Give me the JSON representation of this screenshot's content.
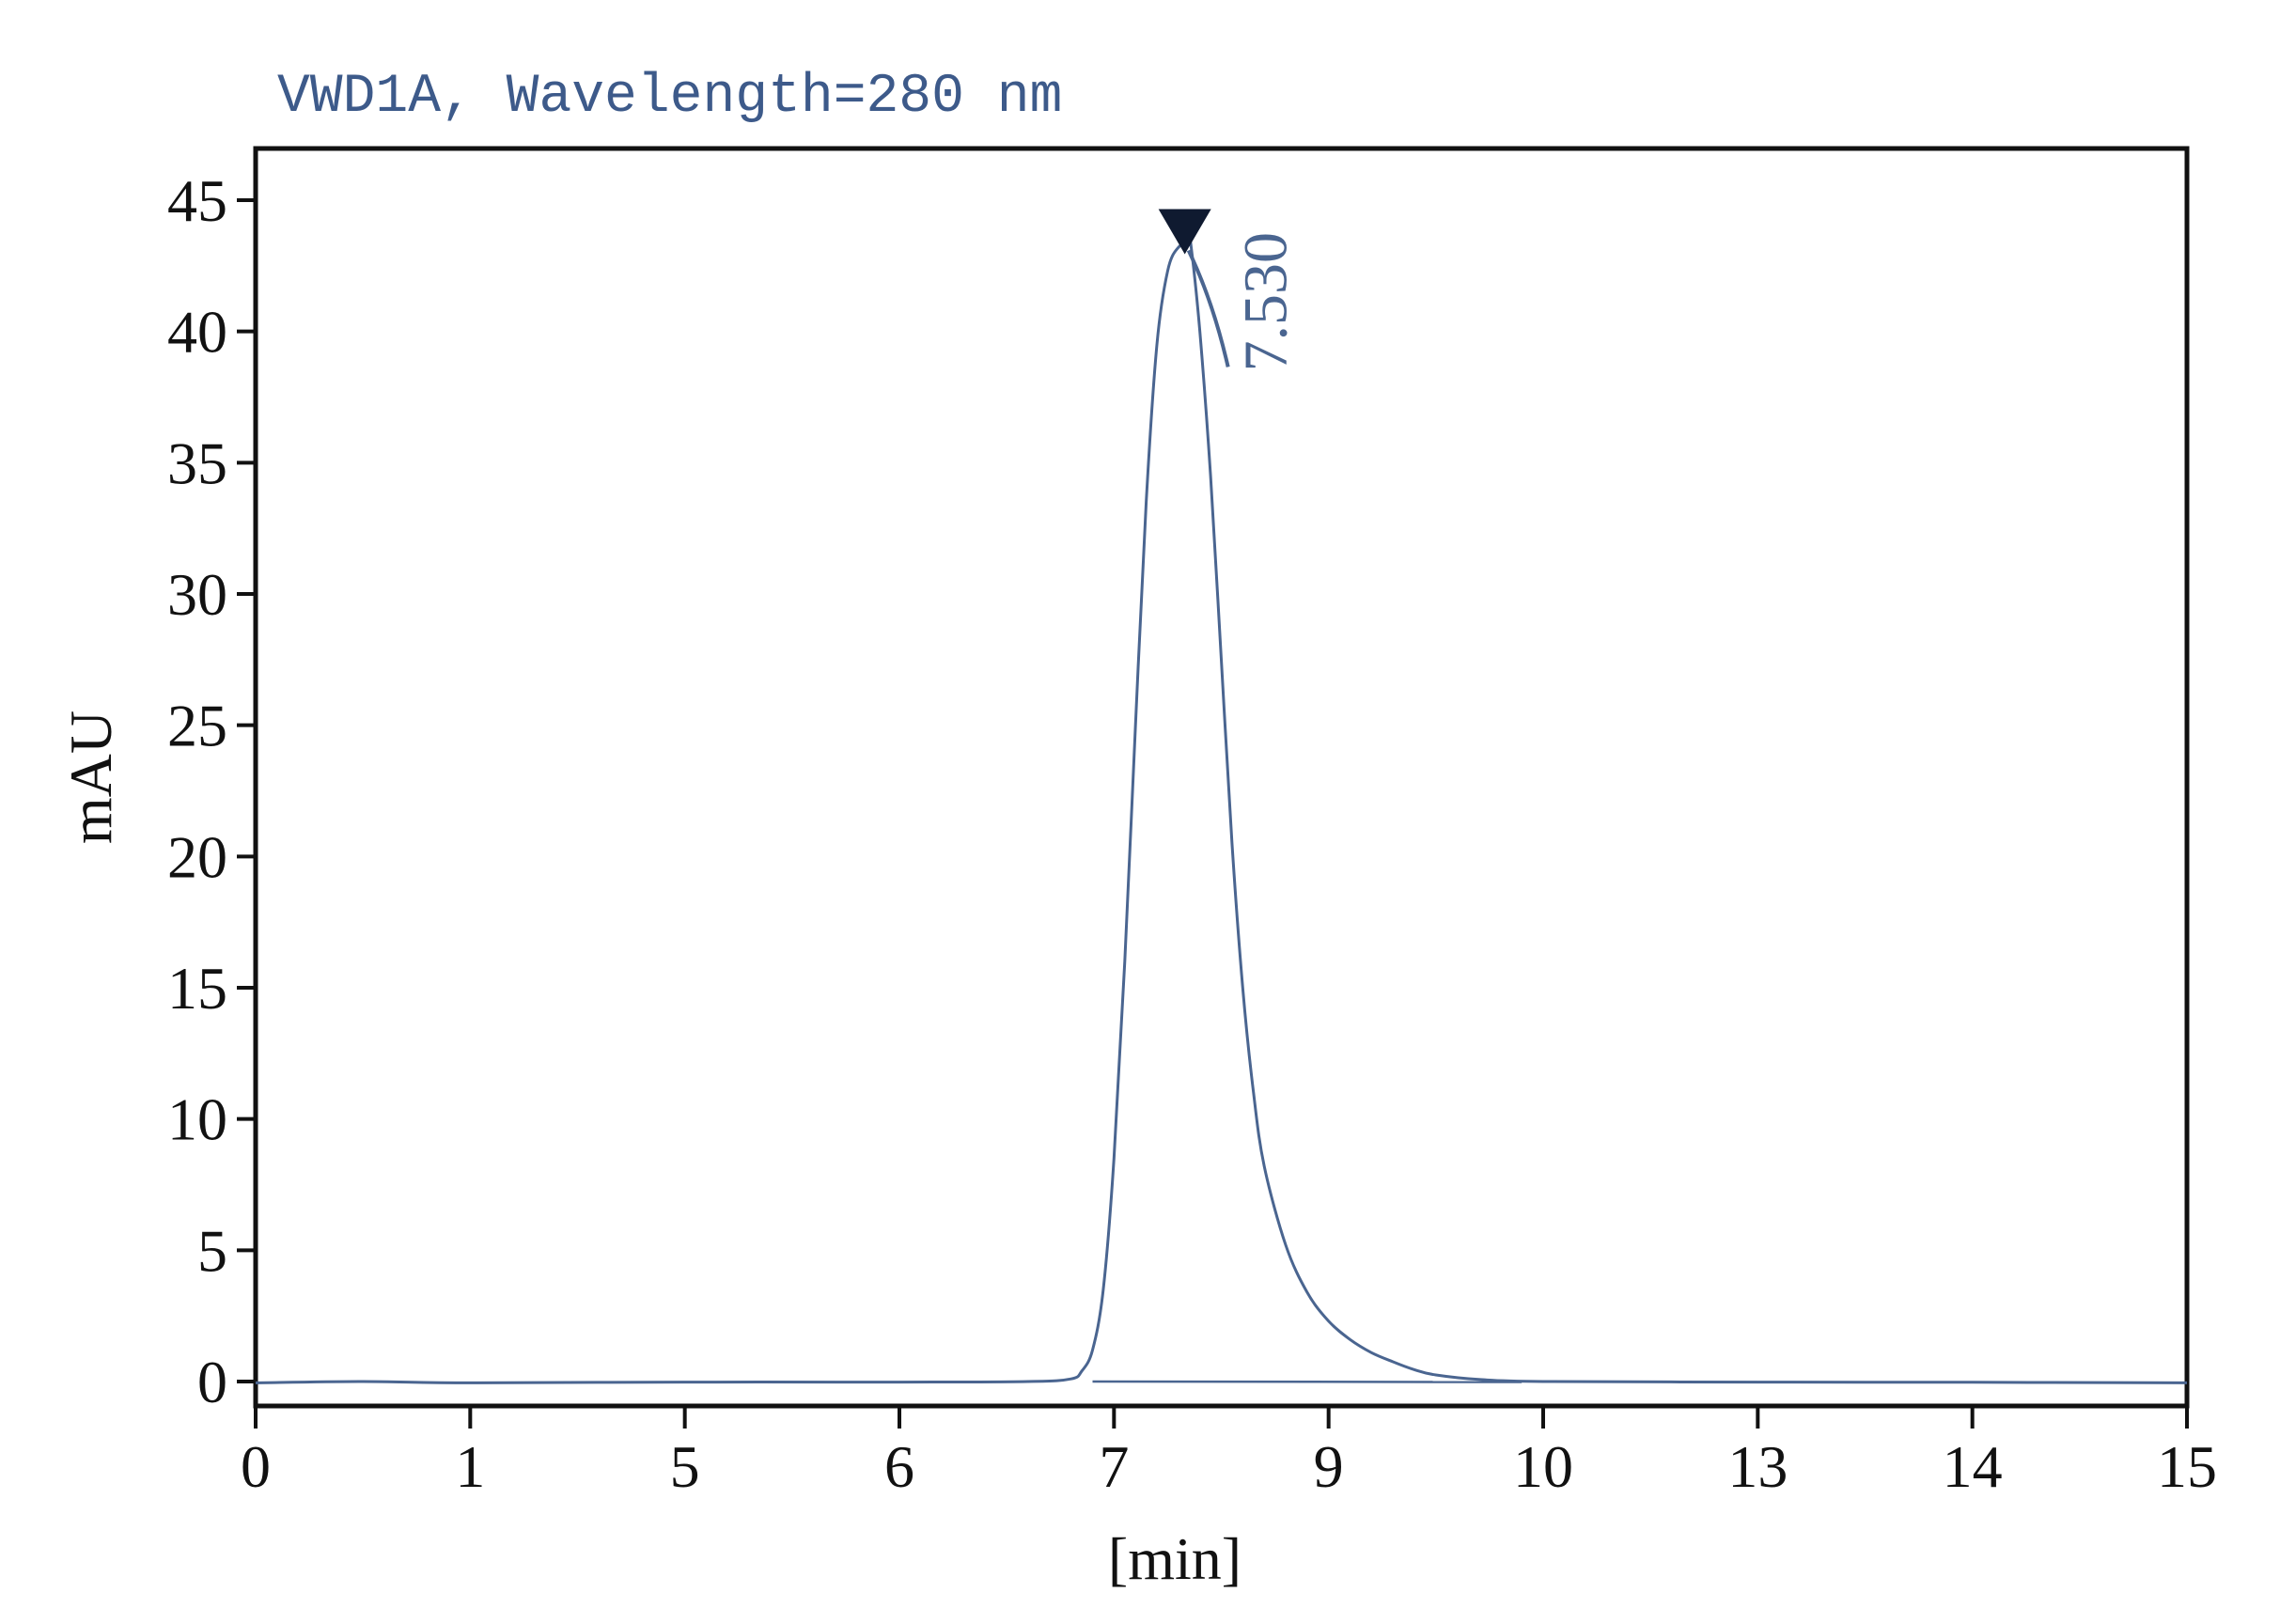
{
  "chart_data": {
    "type": "line",
    "title": "VWD1A, Wavelength=280 nm",
    "xlabel": "[min]",
    "ylabel": "mAU",
    "x_tick_labels": [
      "0",
      "1",
      "5",
      "6",
      "7",
      "9",
      "10",
      "13",
      "14",
      "15"
    ],
    "y_ticks": [
      0,
      5,
      10,
      15,
      20,
      25,
      30,
      35,
      40,
      45
    ],
    "xlim": [
      0,
      9
    ],
    "ylim": [
      -0.8,
      47
    ],
    "grid": false,
    "legend": "none",
    "series": [
      {
        "color": "#4a6590",
        "x": [
          0,
          0.5,
          1,
          2,
          3,
          3.6,
          3.8,
          3.85,
          3.9,
          3.95,
          4.0,
          4.05,
          4.1,
          4.15,
          4.2,
          4.25,
          4.3,
          4.35,
          4.36,
          4.4,
          4.45,
          4.5,
          4.55,
          4.6,
          4.65,
          4.7,
          4.8,
          4.9,
          5.0,
          5.1,
          5.2,
          5.3,
          5.4,
          5.5,
          5.7,
          6.0,
          7.0,
          8.0,
          9.0
        ],
        "y": [
          -0.05,
          0.0,
          -0.05,
          -0.02,
          -0.02,
          0.0,
          0.1,
          0.4,
          1.2,
          3.5,
          8.5,
          16.0,
          25.0,
          33.5,
          39.5,
          42.3,
          43.2,
          43.3,
          43.2,
          40.0,
          34.5,
          27.5,
          20.5,
          15.0,
          11.0,
          8.2,
          5.2,
          3.4,
          2.3,
          1.6,
          1.1,
          0.75,
          0.45,
          0.25,
          0.08,
          0.0,
          -0.02,
          -0.03,
          -0.05
        ]
      }
    ],
    "baseline": {
      "color": "#4a6590",
      "x": [
        3.9,
        5.9
      ],
      "y": [
        0.0,
        -0.02
      ]
    },
    "peak_annotation": {
      "label": "7.530",
      "x": 4.33,
      "y": 43.3,
      "marker": "downward-triangle",
      "marker_color": "#0f1a30"
    },
    "colors": {
      "trace": "#4a6590",
      "title": "#3d5a8a",
      "axes": "#111111"
    }
  }
}
